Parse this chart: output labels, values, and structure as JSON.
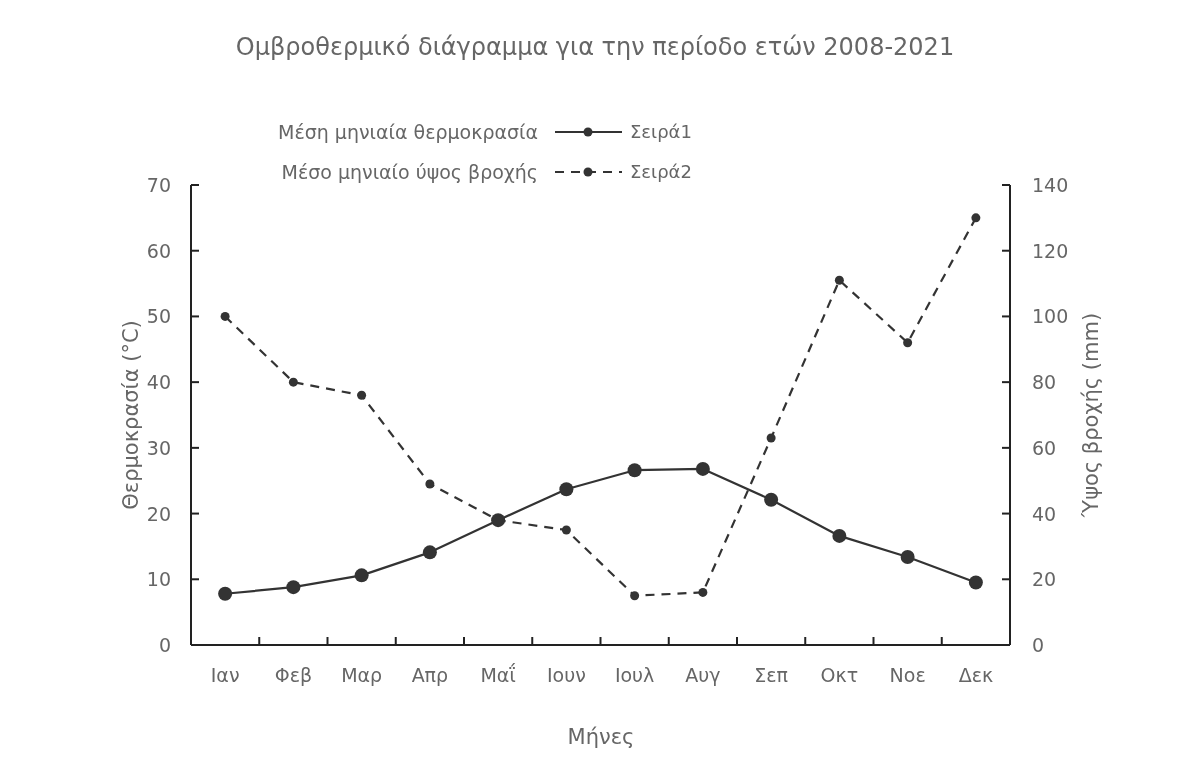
{
  "chart_data": {
    "type": "line",
    "title": "Ομβροθερμικό διάγραμμα για την περίοδο ετών 2008-2021",
    "xlabel": "Μήνες",
    "ylabel": "Θερμοκρασία (°C)",
    "y2label": "Ύψος βροχής (mm)",
    "categories": [
      "Ιαν",
      "Φεβ",
      "Μαρ",
      "Απρ",
      "Μαΐ",
      "Ιουν",
      "Ιουλ",
      "Αυγ",
      "Σεπ",
      "Οκτ",
      "Νοε",
      "Δεκ"
    ],
    "series": [
      {
        "name": "Σειρά1",
        "color": "#333333",
        "line_style": "solid",
        "values": [
          7.8,
          8.8,
          10.6,
          14.1,
          19.0,
          23.7,
          26.6,
          26.8,
          22.1,
          16.6,
          13.4,
          9.5
        ]
      },
      {
        "name": "Σειρά2",
        "color": "#333333",
        "line_style": "dashed",
        "axis": "y2",
        "values": [
          100,
          80,
          76,
          49,
          38,
          35,
          15,
          16,
          63,
          111,
          92,
          130
        ]
      }
    ],
    "annotations": [
      "Μέση μηνιαία θερμοκρασία",
      "Μέσο μηνιαίο ύψος βροχής"
    ],
    "ylim": [
      0,
      70
    ],
    "yticks": [
      0,
      10,
      20,
      30,
      40,
      50,
      60,
      70
    ],
    "y2lim": [
      0,
      140
    ],
    "y2ticks": [
      0,
      20,
      40,
      60,
      80,
      100,
      120,
      140
    ],
    "marker": "circle",
    "legend": "top",
    "grid": false
  }
}
